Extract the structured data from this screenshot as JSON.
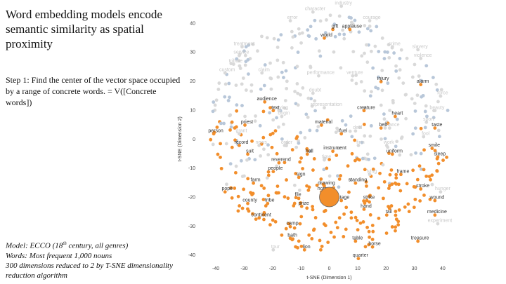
{
  "slide": {
    "title": "Word embedding models encode semantic similarity as spatial proximity",
    "step": "Step 1: Find the center of the vector space occupied by a range of concrete words. = V([Concrete words])",
    "notes": {
      "model_prefix": "Model:  ECCO (18",
      "model_sup": "th",
      "model_suffix": " century, all genres)",
      "words": "Words: Most frequent 1,000 nouns",
      "dims": "300 dimensions reduced to 2 by T-SNE dimensionality reduction algorithm"
    }
  },
  "colors": {
    "concrete": "#f28e2b",
    "abstract_blue": "#b8c7d9",
    "abstract_gray": "#d9d9d9",
    "label_dark": "#333333",
    "label_light": "#c8c8c8"
  },
  "chart_data": {
    "type": "scatter",
    "xlabel": "t-SNE (Dimension 1)",
    "ylabel": "t-SNE (Dimension 2)",
    "xlim": [
      -43,
      42
    ],
    "ylim": [
      -42,
      46
    ],
    "xticks": [
      -40,
      -30,
      -20,
      -10,
      0,
      10,
      20,
      30,
      40
    ],
    "yticks": [
      40,
      30,
      20,
      10,
      0,
      -10,
      -20,
      -30,
      -40
    ],
    "grid": false,
    "centroid": {
      "x": 0,
      "y": -20
    },
    "labels_concrete": [
      {
        "t": "gift",
        "x": 2,
        "y": 39
      },
      {
        "t": "applause",
        "x": 8,
        "y": 39
      },
      {
        "t": "world",
        "x": -1,
        "y": 36
      },
      {
        "t": "injury",
        "x": 19,
        "y": 21
      },
      {
        "t": "alarm",
        "x": 33,
        "y": 20
      },
      {
        "t": "audience",
        "x": -22,
        "y": 14
      },
      {
        "t": "text",
        "x": -19,
        "y": 11
      },
      {
        "t": "creature",
        "x": 13,
        "y": 11
      },
      {
        "t": "heart",
        "x": 24,
        "y": 9
      },
      {
        "t": "priest",
        "x": -29,
        "y": 6
      },
      {
        "t": "material",
        "x": -2,
        "y": 6
      },
      {
        "t": "belt",
        "x": 19,
        "y": 5
      },
      {
        "t": "taste",
        "x": 38,
        "y": 5
      },
      {
        "t": "person",
        "x": -40,
        "y": 3
      },
      {
        "t": "fuel",
        "x": 5,
        "y": 3
      },
      {
        "t": "record",
        "x": -31,
        "y": -1
      },
      {
        "t": "smile",
        "x": 37,
        "y": -2
      },
      {
        "t": "suit",
        "x": -28,
        "y": -4
      },
      {
        "t": "hall",
        "x": -7,
        "y": -4
      },
      {
        "t": "instrument",
        "x": 2,
        "y": -3
      },
      {
        "t": "uniform",
        "x": 23,
        "y": -4
      },
      {
        "t": "sleep",
        "x": 39,
        "y": -5
      },
      {
        "t": "reverend",
        "x": -17,
        "y": -7
      },
      {
        "t": "people",
        "x": -19,
        "y": -10
      },
      {
        "t": "sign",
        "x": -10,
        "y": -12
      },
      {
        "t": "frame",
        "x": 26,
        "y": -11
      },
      {
        "t": "farm",
        "x": -26,
        "y": -14
      },
      {
        "t": "drawing",
        "x": -1,
        "y": -15
      },
      {
        "t": "standing",
        "x": 10,
        "y": -14
      },
      {
        "t": "pope",
        "x": -36,
        "y": -17
      },
      {
        "t": "stroke",
        "x": 33,
        "y": -16
      },
      {
        "t": "home",
        "x": -2,
        "y": -17
      },
      {
        "t": "file",
        "x": -11,
        "y": -19
      },
      {
        "t": "guard",
        "x": -1,
        "y": -20
      },
      {
        "t": "stage",
        "x": 5,
        "y": -20
      },
      {
        "t": "strike",
        "x": 14,
        "y": -20
      },
      {
        "t": "wound",
        "x": 38,
        "y": -20
      },
      {
        "t": "county",
        "x": -28,
        "y": -21
      },
      {
        "t": "tribe",
        "x": -21,
        "y": -21
      },
      {
        "t": "prize",
        "x": -9,
        "y": -22
      },
      {
        "t": "hand",
        "x": 13,
        "y": -23
      },
      {
        "t": "continent",
        "x": -24,
        "y": -26
      },
      {
        "t": "tail",
        "x": 21,
        "y": -25
      },
      {
        "t": "medicine",
        "x": 38,
        "y": -25
      },
      {
        "t": "camp",
        "x": -13,
        "y": -29
      },
      {
        "t": "bath",
        "x": -13,
        "y": -33
      },
      {
        "t": "table",
        "x": 10,
        "y": -34
      },
      {
        "t": "horse",
        "x": 16,
        "y": -36
      },
      {
        "t": "treasure",
        "x": 32,
        "y": -34
      },
      {
        "t": "lion",
        "x": -8,
        "y": -37
      },
      {
        "t": "quarter",
        "x": 11,
        "y": -40
      }
    ],
    "labels_abstract": [
      {
        "t": "character",
        "x": -5,
        "y": 45
      },
      {
        "t": "industry",
        "x": 5,
        "y": 47
      },
      {
        "t": "error",
        "x": -13,
        "y": 42
      },
      {
        "t": "courage",
        "x": 15,
        "y": 42
      },
      {
        "t": "treatment",
        "x": -30,
        "y": 33
      },
      {
        "t": "crime",
        "x": 23,
        "y": 33
      },
      {
        "t": "slavery",
        "x": 32,
        "y": 32
      },
      {
        "t": "service",
        "x": -31,
        "y": 30
      },
      {
        "t": "violence",
        "x": 33,
        "y": 29
      },
      {
        "t": "tribute",
        "x": -33,
        "y": 27
      },
      {
        "t": "custom",
        "x": -36,
        "y": 24
      },
      {
        "t": "claim",
        "x": -23,
        "y": 24
      },
      {
        "t": "performance",
        "x": -3,
        "y": 23
      },
      {
        "t": "venture",
        "x": 9,
        "y": 23
      },
      {
        "t": "force",
        "x": 40,
        "y": 16
      },
      {
        "t": "doubt",
        "x": -5,
        "y": 17
      },
      {
        "t": "beauty",
        "x": 38,
        "y": 11
      },
      {
        "t": "representation",
        "x": -1,
        "y": 12
      },
      {
        "t": "saying",
        "x": -17,
        "y": 11
      },
      {
        "t": "grant",
        "x": -31,
        "y": 3
      },
      {
        "t": "origin",
        "x": -16,
        "y": 9
      },
      {
        "t": "chance",
        "x": 22,
        "y": 5
      },
      {
        "t": "sport",
        "x": 35,
        "y": 7
      },
      {
        "t": "deal",
        "x": 10,
        "y": 4
      },
      {
        "t": "fool",
        "x": 34,
        "y": 2
      },
      {
        "t": "firm",
        "x": 11,
        "y": -1
      },
      {
        "t": "news",
        "x": -24,
        "y": -1
      },
      {
        "t": "order",
        "x": -15,
        "y": -1
      },
      {
        "t": "work",
        "x": 21,
        "y": -1
      },
      {
        "t": "time",
        "x": -1,
        "y": -6
      },
      {
        "t": "lying",
        "x": 15,
        "y": -11
      },
      {
        "t": "hunger",
        "x": 40,
        "y": -17
      },
      {
        "t": "experiment",
        "x": 39,
        "y": -28
      },
      {
        "t": "tour",
        "x": -19,
        "y": -37
      }
    ]
  }
}
